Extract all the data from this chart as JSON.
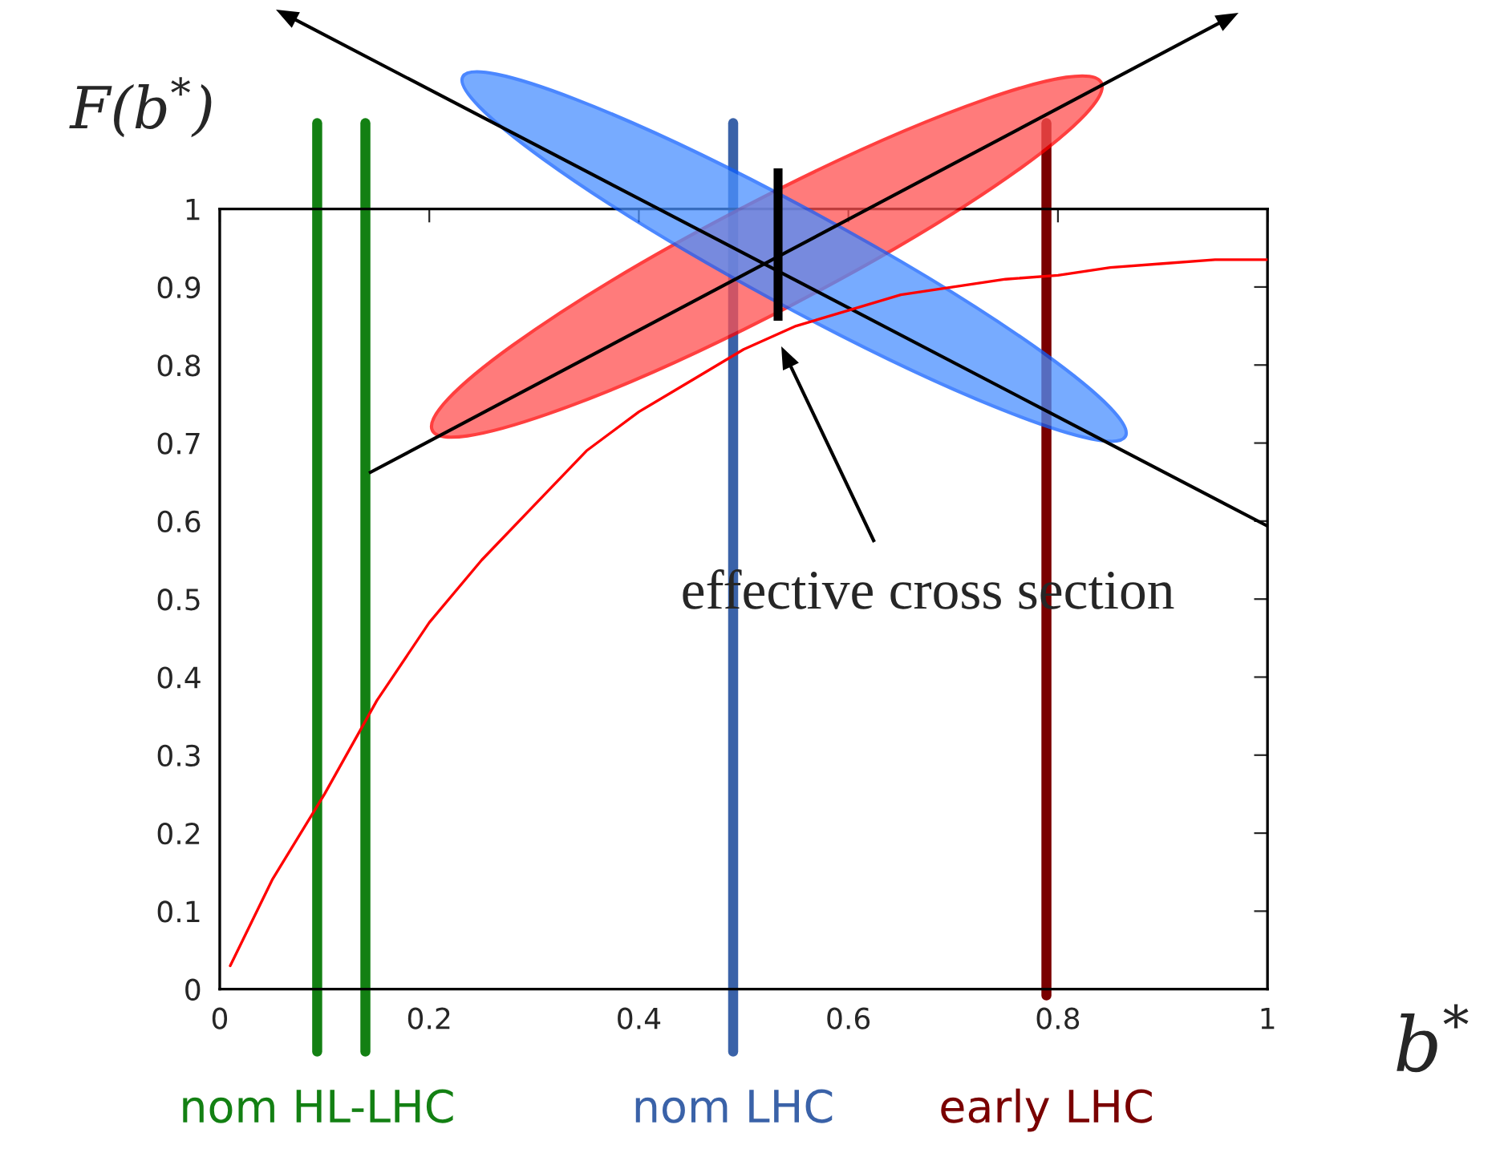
{
  "chart_data": {
    "type": "line",
    "xlabel": "b$^{*}$",
    "ylabel": "F(b$^{*}$)",
    "series": [
      {
        "color": "#ff0000",
        "x": [
          0.01,
          0.05,
          0.1,
          0.15,
          0.2,
          0.25,
          0.3,
          0.35,
          0.4,
          0.45,
          0.5,
          0.55,
          0.6,
          0.65,
          0.7,
          0.75,
          0.8,
          0.85,
          0.9,
          0.95,
          1.0
        ],
        "values": [
          0.03,
          0.14,
          0.25,
          0.37,
          0.47,
          0.55,
          0.62,
          0.69,
          0.74,
          0.78,
          0.82,
          0.85,
          0.87,
          0.89,
          0.9,
          0.91,
          0.915,
          0.925,
          0.93,
          0.935,
          0.935
        ]
      }
    ],
    "xlim": [
      0,
      1
    ],
    "ylim": [
      0,
      1
    ],
    "xticks": [
      0,
      0.2,
      0.4,
      0.6,
      0.8,
      1
    ],
    "yticks": [
      0,
      0.1,
      0.2,
      0.3,
      0.4,
      0.5,
      0.6,
      0.7,
      0.8,
      0.9,
      1
    ],
    "ref_lines": [
      {
        "axis": "x",
        "value": 0.093,
        "label": "nom HL-LHC",
        "color": "#138013"
      },
      {
        "axis": "x",
        "value": 0.139,
        "label": null,
        "color": "#138013"
      },
      {
        "axis": "x",
        "value": 0.49,
        "label": "nom LHC",
        "color": "#3a62a8"
      },
      {
        "axis": "x",
        "value": 0.789,
        "label": "early LHC",
        "color": "#7a0000"
      }
    ],
    "annotations": [
      "effective cross section"
    ],
    "grid": false,
    "legend": false,
    "marker": "none",
    "line_style": "solid"
  }
}
